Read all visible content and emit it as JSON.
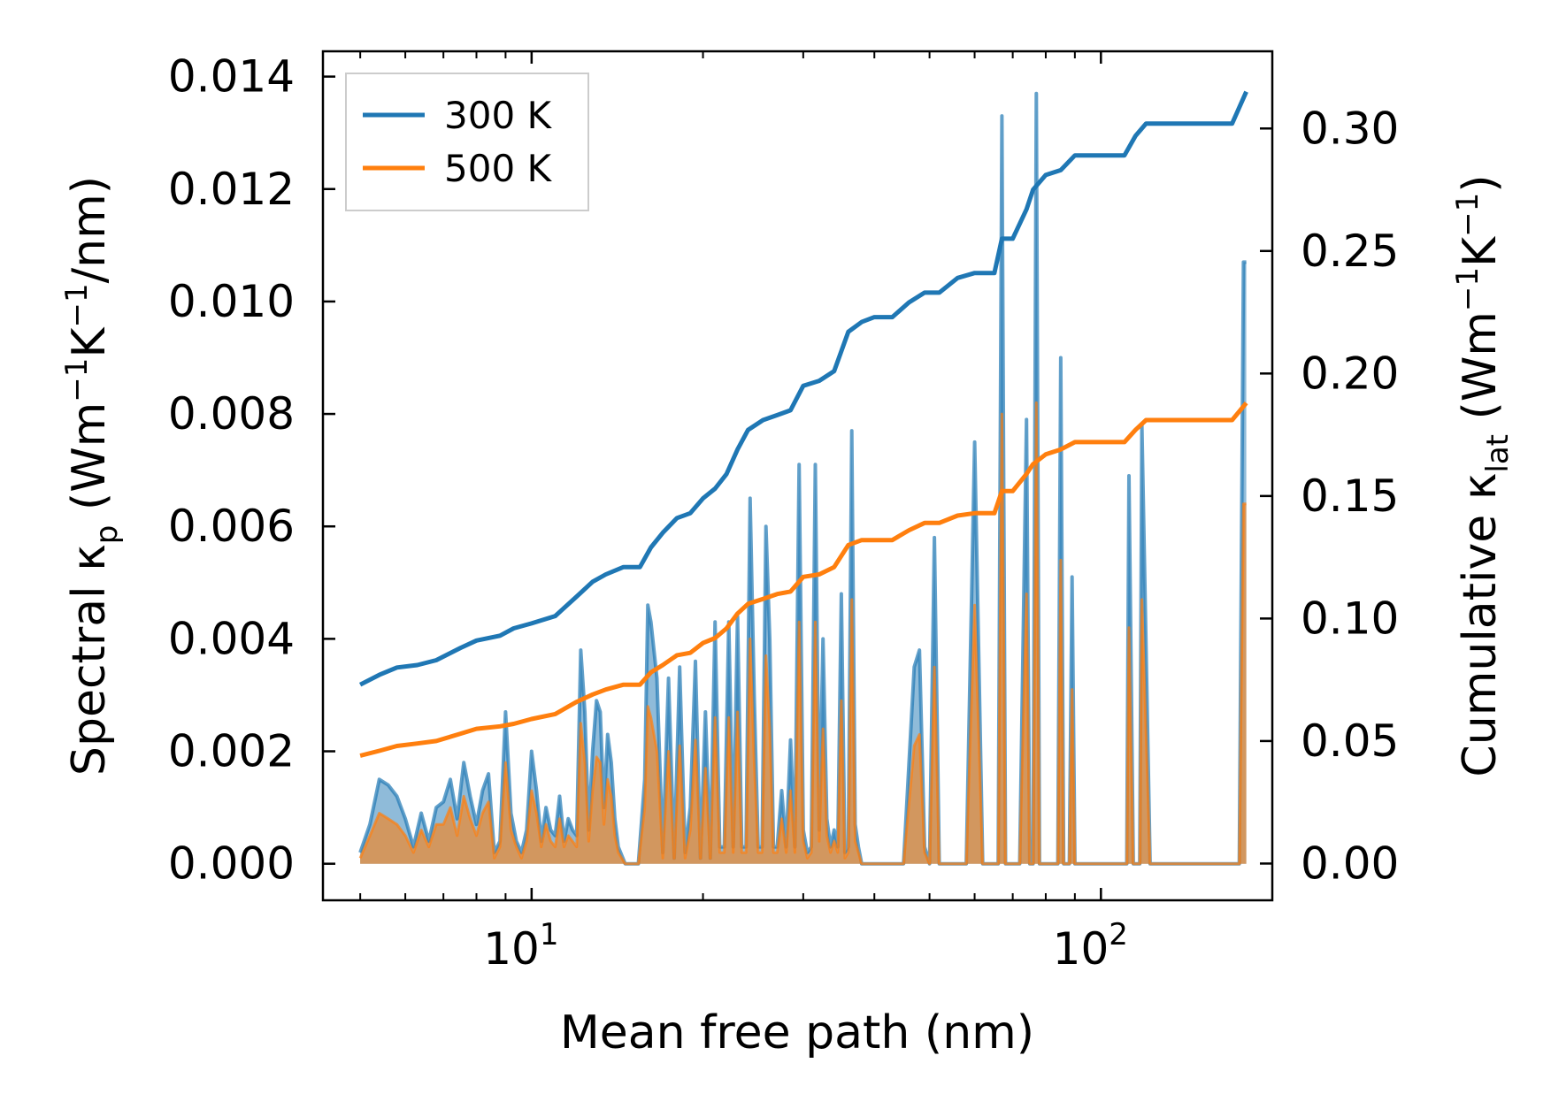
{
  "chart_data": {
    "type": "line",
    "xlabel": "Mean free path (nm)",
    "xscale": "log",
    "xlim": [
      4.3,
      200
    ],
    "x_ticks": [
      {
        "base": "10",
        "exp": "1"
      },
      {
        "base": "10",
        "exp": "2"
      }
    ],
    "ylabel_left": {
      "prefix": "Spectral κ",
      "sub": "p",
      "mid": " (Wm",
      "sup1": "−1",
      "mid2": "K",
      "sup2": "−1",
      "suffix": "/nm)"
    },
    "ylabel_right": {
      "prefix": "Cumulative κ",
      "sub": "lat",
      "mid": " (Wm",
      "sup1": "−1",
      "mid2": "K",
      "sup2": "−1",
      "suffix": ")"
    },
    "ylim_left": [
      -0.00065,
      0.01445
    ],
    "ylim_right": [
      -0.015,
      0.3315
    ],
    "yticks_left": [
      "0.000",
      "0.002",
      "0.004",
      "0.006",
      "0.008",
      "0.010",
      "0.012",
      "0.014"
    ],
    "yticks_right": [
      "0.00",
      "0.05",
      "0.10",
      "0.15",
      "0.20",
      "0.25",
      "0.30"
    ],
    "legend": {
      "location": "upper-left",
      "entries": [
        {
          "label": "300 K",
          "color": "#1f77b4"
        },
        {
          "label": "500 K",
          "color": "#ff7f0e"
        }
      ]
    },
    "series": [
      {
        "name": "300 K",
        "color": "#1f77b4",
        "cumulative": {
          "x": [
            5.0,
            5.4,
            5.8,
            6.3,
            6.8,
            7.5,
            8.0,
            8.8,
            9.3,
            10.0,
            11.0,
            12.0,
            12.8,
            13.5,
            14.5,
            15.5,
            16.2,
            17.0,
            18.0,
            19.0,
            20.0,
            21.0,
            22.0,
            23.0,
            24.0,
            25.5,
            27.0,
            28.5,
            30.0,
            32.0,
            34.0,
            36.0,
            38.0,
            40.0,
            43.0,
            46.0,
            49.0,
            52.0,
            56.0,
            60.0,
            65.0,
            67.0,
            70.0,
            74.0,
            76.0,
            80.0,
            85.0,
            90.0,
            110.0,
            115.0,
            120.0,
            170.0,
            180.0
          ],
          "y": [
            0.073,
            0.077,
            0.08,
            0.081,
            0.083,
            0.088,
            0.091,
            0.093,
            0.096,
            0.098,
            0.101,
            0.109,
            0.115,
            0.118,
            0.121,
            0.121,
            0.129,
            0.135,
            0.141,
            0.143,
            0.149,
            0.153,
            0.159,
            0.169,
            0.177,
            0.181,
            0.183,
            0.185,
            0.195,
            0.197,
            0.201,
            0.217,
            0.221,
            0.223,
            0.223,
            0.229,
            0.233,
            0.233,
            0.239,
            0.241,
            0.241,
            0.255,
            0.255,
            0.267,
            0.275,
            0.281,
            0.283,
            0.289,
            0.289,
            0.297,
            0.302,
            0.302,
            0.315
          ]
        },
        "spectral": {
          "x": [
            5.0,
            5.2,
            5.4,
            5.6,
            5.8,
            6.0,
            6.2,
            6.4,
            6.6,
            6.8,
            7.0,
            7.2,
            7.4,
            7.6,
            7.8,
            8.0,
            8.2,
            8.4,
            8.6,
            8.8,
            9.0,
            9.2,
            9.4,
            9.6,
            9.8,
            10.0,
            10.2,
            10.4,
            10.6,
            10.8,
            11.0,
            11.2,
            11.4,
            11.6,
            11.8,
            12.0,
            12.2,
            12.4,
            12.6,
            12.8,
            13.0,
            13.2,
            13.4,
            13.6,
            13.8,
            14.0,
            14.2,
            14.6,
            15.0,
            15.4,
            15.8,
            16.0,
            16.2,
            16.6,
            17.0,
            17.4,
            17.8,
            18.2,
            18.6,
            19.0,
            19.4,
            19.8,
            20.2,
            20.6,
            21.0,
            21.4,
            21.8,
            22.2,
            22.6,
            23.0,
            23.4,
            23.8,
            24.2,
            24.6,
            25.0,
            25.4,
            25.8,
            26.2,
            26.6,
            27.0,
            27.5,
            28.0,
            28.5,
            29.0,
            29.5,
            30.0,
            30.5,
            31.0,
            31.5,
            32.0,
            32.5,
            33.0,
            33.5,
            34.0,
            34.5,
            35.0,
            35.5,
            36.0,
            36.5,
            37.0,
            37.5,
            38.0,
            38.5,
            39.0,
            39.5,
            40.0,
            45.0,
            47.0,
            48.0,
            49.0,
            50.0,
            51.0,
            52.0,
            58.0,
            60.0,
            62.0,
            65.0,
            66.0,
            67.0,
            68.0,
            72.0,
            74.0,
            75.0,
            76.0,
            77.0,
            78.0,
            82.0,
            84.0,
            85.0,
            86.0,
            88.0,
            89.0,
            90.0,
            95.0,
            110.0,
            111.0,
            112.0,
            114.0,
            116.0,
            117.0,
            118.0,
            122.0,
            170.0,
            175.0,
            178.0,
            180.0
          ],
          "y": [
            0.0002,
            0.0007,
            0.0015,
            0.0014,
            0.0012,
            0.0008,
            0.0003,
            0.0009,
            0.0004,
            0.001,
            0.0011,
            0.0015,
            0.0008,
            0.0018,
            0.0012,
            0.0007,
            0.0013,
            0.0016,
            0.0002,
            0.0004,
            0.0027,
            0.0009,
            0.0004,
            0.0002,
            0.0006,
            0.002,
            0.0013,
            0.0004,
            0.001,
            0.0006,
            0.0005,
            0.0012,
            0.0004,
            0.0008,
            0.0006,
            0.0005,
            0.0038,
            0.0027,
            0.0006,
            0.002,
            0.0029,
            0.0027,
            0.001,
            0.0023,
            0.0018,
            0.0008,
            0.0003,
            0.0,
            0.0,
            0.0,
            0.0015,
            0.0046,
            0.0043,
            0.0033,
            0.0002,
            0.0033,
            0.0001,
            0.0035,
            0.0002,
            0.001,
            0.0036,
            0.0001,
            0.0027,
            0.0001,
            0.0043,
            0.0003,
            0.0003,
            0.0043,
            0.0003,
            0.0044,
            0.0003,
            0.0003,
            0.0065,
            0.003,
            0.0003,
            0.0003,
            0.006,
            0.004,
            0.0003,
            0.0003,
            0.0013,
            0.0003,
            0.0022,
            0.0003,
            0.0071,
            0.0006,
            0.0002,
            0.0003,
            0.0071,
            0.0006,
            0.004,
            0.0008,
            0.0003,
            0.0006,
            0.0003,
            0.0048,
            0.0002,
            0.0003,
            0.0077,
            0.0007,
            0.0003,
            0.0,
            0.0,
            0.0,
            0.0,
            0.0,
            0.0,
            0.0035,
            0.0038,
            0.0003,
            0.0,
            0.0058,
            0.0,
            0.0,
            0.0075,
            0.0,
            0.0,
            0.0,
            0.0133,
            0.0,
            0.0,
            0.0079,
            0.0,
            0.0,
            0.0137,
            0.0,
            0.0,
            0.0,
            0.009,
            0.0,
            0.0,
            0.0051,
            0.0,
            0.0,
            0.0,
            0.0,
            0.0069,
            0.0,
            0.0,
            0.0,
            0.0078,
            0.0,
            0.0,
            0.0,
            0.0107,
            0.0107
          ]
        }
      },
      {
        "name": "500 K",
        "color": "#ff7f0e",
        "cumulative": {
          "x": [
            5.0,
            5.4,
            5.8,
            6.3,
            6.8,
            7.5,
            8.0,
            8.8,
            9.3,
            10.0,
            11.0,
            12.0,
            12.8,
            13.5,
            14.5,
            15.5,
            16.2,
            17.0,
            18.0,
            19.0,
            20.0,
            21.0,
            22.0,
            23.0,
            24.0,
            25.5,
            27.0,
            28.5,
            30.0,
            32.0,
            34.0,
            36.0,
            38.0,
            40.0,
            43.0,
            46.0,
            49.0,
            52.0,
            56.0,
            60.0,
            65.0,
            67.0,
            70.0,
            74.0,
            76.0,
            80.0,
            85.0,
            90.0,
            110.0,
            115.0,
            120.0,
            170.0,
            180.0
          ],
          "y": [
            0.044,
            0.046,
            0.048,
            0.049,
            0.05,
            0.053,
            0.055,
            0.056,
            0.057,
            0.059,
            0.061,
            0.066,
            0.069,
            0.071,
            0.073,
            0.073,
            0.078,
            0.081,
            0.085,
            0.086,
            0.09,
            0.092,
            0.096,
            0.102,
            0.106,
            0.108,
            0.11,
            0.111,
            0.117,
            0.118,
            0.121,
            0.13,
            0.132,
            0.132,
            0.132,
            0.136,
            0.139,
            0.139,
            0.142,
            0.143,
            0.143,
            0.152,
            0.152,
            0.159,
            0.163,
            0.167,
            0.169,
            0.172,
            0.172,
            0.177,
            0.181,
            0.181,
            0.188
          ]
        },
        "spectral": {
          "x": [
            5.0,
            5.2,
            5.4,
            5.6,
            5.8,
            6.0,
            6.2,
            6.4,
            6.6,
            6.8,
            7.0,
            7.2,
            7.4,
            7.6,
            7.8,
            8.0,
            8.2,
            8.4,
            8.6,
            8.8,
            9.0,
            9.2,
            9.4,
            9.6,
            9.8,
            10.0,
            10.2,
            10.4,
            10.6,
            10.8,
            11.0,
            11.2,
            11.4,
            11.6,
            11.8,
            12.0,
            12.2,
            12.4,
            12.6,
            12.8,
            13.0,
            13.2,
            13.4,
            13.6,
            13.8,
            14.0,
            14.2,
            14.6,
            15.0,
            15.4,
            15.8,
            16.0,
            16.2,
            16.6,
            17.0,
            17.4,
            17.8,
            18.2,
            18.6,
            19.0,
            19.4,
            19.8,
            20.2,
            20.6,
            21.0,
            21.4,
            21.8,
            22.2,
            22.6,
            23.0,
            23.4,
            23.8,
            24.2,
            24.6,
            25.0,
            25.4,
            25.8,
            26.2,
            26.6,
            27.0,
            27.5,
            28.0,
            28.5,
            29.0,
            29.5,
            30.0,
            30.5,
            31.0,
            31.5,
            32.0,
            32.5,
            33.0,
            33.5,
            34.0,
            34.5,
            35.0,
            35.5,
            36.0,
            36.5,
            37.0,
            37.5,
            38.0,
            38.5,
            39.0,
            39.5,
            40.0,
            45.0,
            47.0,
            48.0,
            49.0,
            50.0,
            51.0,
            52.0,
            58.0,
            60.0,
            62.0,
            65.0,
            66.0,
            67.0,
            68.0,
            72.0,
            74.0,
            75.0,
            76.0,
            77.0,
            78.0,
            82.0,
            84.0,
            85.0,
            86.0,
            88.0,
            89.0,
            90.0,
            95.0,
            110.0,
            111.0,
            112.0,
            114.0,
            116.0,
            117.0,
            118.0,
            122.0,
            170.0,
            175.0,
            178.0,
            180.0
          ],
          "y": [
            0.0001,
            0.0005,
            0.0009,
            0.0008,
            0.0007,
            0.0005,
            0.0002,
            0.0006,
            0.0003,
            0.0007,
            0.0007,
            0.001,
            0.0005,
            0.0012,
            0.0008,
            0.0005,
            0.0009,
            0.0011,
            0.0001,
            0.0003,
            0.0018,
            0.0006,
            0.0003,
            0.0001,
            0.0004,
            0.0013,
            0.0009,
            0.0003,
            0.0007,
            0.0004,
            0.0003,
            0.0008,
            0.0003,
            0.0005,
            0.0004,
            0.0003,
            0.0025,
            0.0018,
            0.0004,
            0.0013,
            0.0019,
            0.0018,
            0.0007,
            0.0015,
            0.0012,
            0.0005,
            0.0002,
            0.0,
            0.0,
            0.0,
            0.001,
            0.0028,
            0.0026,
            0.002,
            0.0001,
            0.002,
            0.0001,
            0.0021,
            0.0001,
            0.0006,
            0.0022,
            0.0001,
            0.0017,
            0.0001,
            0.0026,
            0.0002,
            0.0002,
            0.0026,
            0.0002,
            0.0027,
            0.0002,
            0.0002,
            0.004,
            0.0018,
            0.0002,
            0.0002,
            0.0037,
            0.0024,
            0.0002,
            0.0002,
            0.0008,
            0.0002,
            0.0013,
            0.0002,
            0.0043,
            0.0004,
            0.0001,
            0.0002,
            0.0043,
            0.0004,
            0.0024,
            0.0005,
            0.0002,
            0.0004,
            0.0002,
            0.0029,
            0.0001,
            0.0002,
            0.0047,
            0.0004,
            0.0002,
            0.0,
            0.0,
            0.0,
            0.0,
            0.0,
            0.0,
            0.0021,
            0.0023,
            0.0002,
            0.0,
            0.0035,
            0.0,
            0.0,
            0.0046,
            0.0,
            0.0,
            0.0,
            0.008,
            0.0,
            0.0,
            0.0048,
            0.0,
            0.0,
            0.0082,
            0.0,
            0.0,
            0.0,
            0.0054,
            0.0,
            0.0,
            0.0031,
            0.0,
            0.0,
            0.0,
            0.0,
            0.0042,
            0.0,
            0.0,
            0.0,
            0.0047,
            0.0,
            0.0,
            0.0,
            0.0064,
            0.0064
          ]
        }
      }
    ]
  }
}
